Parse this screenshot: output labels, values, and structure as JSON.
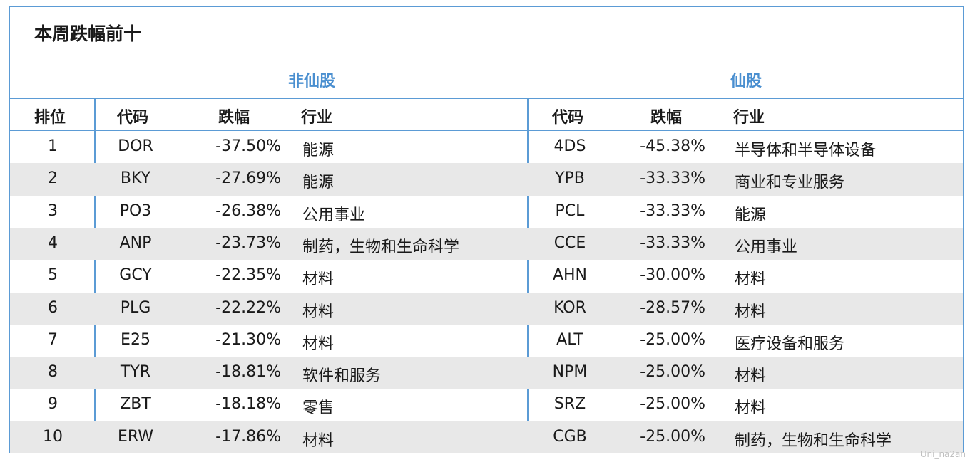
{
  "title": "本周跌幅前十",
  "groups": {
    "non_fairy": "非仙股",
    "fairy": "仙股"
  },
  "headers": {
    "rank": "排位",
    "code": "代码",
    "change": "跌幅",
    "industry": "行业",
    "code2": "代码",
    "change2": "跌幅",
    "industry2": "行业"
  },
  "rows": [
    {
      "rank": "1",
      "code": "DOR",
      "change": "-37.50%",
      "industry": "能源",
      "code2": "4DS",
      "change2": "-45.38%",
      "industry2": "半导体和半导体设备"
    },
    {
      "rank": "2",
      "code": "BKY",
      "change": "-27.69%",
      "industry": "能源",
      "code2": "YPB",
      "change2": "-33.33%",
      "industry2": "商业和专业服务"
    },
    {
      "rank": "3",
      "code": "PO3",
      "change": "-26.38%",
      "industry": "公用事业",
      "code2": "PCL",
      "change2": "-33.33%",
      "industry2": "能源"
    },
    {
      "rank": "4",
      "code": "ANP",
      "change": "-23.73%",
      "industry": "制药，生物和生命科学",
      "code2": "CCE",
      "change2": "-33.33%",
      "industry2": "公用事业"
    },
    {
      "rank": "5",
      "code": "GCY",
      "change": "-22.35%",
      "industry": "材料",
      "code2": "AHN",
      "change2": "-30.00%",
      "industry2": "材料"
    },
    {
      "rank": "6",
      "code": "PLG",
      "change": "-22.22%",
      "industry": "材料",
      "code2": "KOR",
      "change2": "-28.57%",
      "industry2": "材料"
    },
    {
      "rank": "7",
      "code": "E25",
      "change": "-21.30%",
      "industry": "材料",
      "code2": "ALT",
      "change2": "-25.00%",
      "industry2": "医疗设备和服务"
    },
    {
      "rank": "8",
      "code": "TYR",
      "change": "-18.81%",
      "industry": "软件和服务",
      "code2": "NPM",
      "change2": "-25.00%",
      "industry2": "材料"
    },
    {
      "rank": "9",
      "code": "ZBT",
      "change": "-18.18%",
      "industry": "零售",
      "code2": "SRZ",
      "change2": "-25.00%",
      "industry2": "材料"
    },
    {
      "rank": "10",
      "code": "ERW",
      "change": "-17.86%",
      "industry": "材料",
      "code2": "CGB",
      "change2": "-25.00%",
      "industry2": "制药，生物和生命科学"
    }
  ],
  "watermark": "Uni_na2an",
  "colors": {
    "border": "#5b9bd5",
    "group_text": "#4a8fd0",
    "alt_row": "#e8e8e8"
  }
}
